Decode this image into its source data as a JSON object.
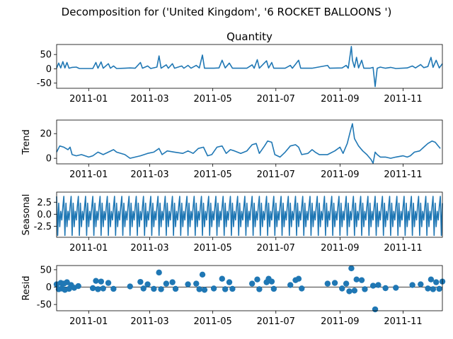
{
  "chart_data": {
    "type": "line",
    "title": "Decomposition for ('United Kingdom', '6 ROCKET BALLOONS ')",
    "x_range": [
      "2010-12-01",
      "2011-12-09"
    ],
    "x_ticks": [
      "2011-01",
      "2011-03",
      "2011-05",
      "2011-07",
      "2011-09",
      "2011-11"
    ],
    "color": "#1f77b4",
    "panels": [
      {
        "name": "quantity",
        "subplot_title": "Quantity",
        "ylabel": "",
        "kind": "line",
        "ylim": [
          -68,
          85
        ],
        "yticks": [
          50,
          0,
          -50
        ],
        "points": [
          [
            "2010-12-01",
            2
          ],
          [
            "2010-12-03",
            20
          ],
          [
            "2010-12-05",
            3
          ],
          [
            "2010-12-07",
            25
          ],
          [
            "2010-12-09",
            3
          ],
          [
            "2010-12-11",
            22
          ],
          [
            "2010-12-13",
            2
          ],
          [
            "2010-12-16",
            5
          ],
          [
            "2010-12-20",
            6
          ],
          [
            "2010-12-23",
            1
          ],
          [
            "2011-01-05",
            1
          ],
          [
            "2011-01-08",
            22
          ],
          [
            "2011-01-10",
            2
          ],
          [
            "2011-01-13",
            24
          ],
          [
            "2011-01-15",
            2
          ],
          [
            "2011-01-20",
            18
          ],
          [
            "2011-01-22",
            2
          ],
          [
            "2011-01-25",
            10
          ],
          [
            "2011-01-28",
            1
          ],
          [
            "2011-02-05",
            2
          ],
          [
            "2011-02-10",
            3
          ],
          [
            "2011-02-15",
            2
          ],
          [
            "2011-02-20",
            22
          ],
          [
            "2011-02-22",
            2
          ],
          [
            "2011-02-27",
            10
          ],
          [
            "2011-03-02",
            1
          ],
          [
            "2011-03-08",
            6
          ],
          [
            "2011-03-10",
            45
          ],
          [
            "2011-03-12",
            2
          ],
          [
            "2011-03-17",
            14
          ],
          [
            "2011-03-19",
            2
          ],
          [
            "2011-03-23",
            18
          ],
          [
            "2011-03-25",
            2
          ],
          [
            "2011-04-01",
            10
          ],
          [
            "2011-04-03",
            2
          ],
          [
            "2011-04-07",
            12
          ],
          [
            "2011-04-10",
            2
          ],
          [
            "2011-04-15",
            12
          ],
          [
            "2011-04-18",
            3
          ],
          [
            "2011-04-21",
            48
          ],
          [
            "2011-04-23",
            2
          ],
          [
            "2011-05-02",
            2
          ],
          [
            "2011-05-07",
            3
          ],
          [
            "2011-05-10",
            30
          ],
          [
            "2011-05-13",
            3
          ],
          [
            "2011-05-17",
            20
          ],
          [
            "2011-05-20",
            2
          ],
          [
            "2011-06-03",
            2
          ],
          [
            "2011-06-08",
            14
          ],
          [
            "2011-06-10",
            2
          ],
          [
            "2011-06-13",
            32
          ],
          [
            "2011-06-15",
            2
          ],
          [
            "2011-06-22",
            28
          ],
          [
            "2011-06-24",
            3
          ],
          [
            "2011-06-27",
            22
          ],
          [
            "2011-06-29",
            2
          ],
          [
            "2011-07-10",
            2
          ],
          [
            "2011-07-15",
            12
          ],
          [
            "2011-07-17",
            2
          ],
          [
            "2011-07-23",
            30
          ],
          [
            "2011-07-25",
            2
          ],
          [
            "2011-08-05",
            2
          ],
          [
            "2011-08-20",
            12
          ],
          [
            "2011-08-22",
            2
          ],
          [
            "2011-09-03",
            3
          ],
          [
            "2011-09-07",
            12
          ],
          [
            "2011-09-09",
            2
          ],
          [
            "2011-09-12",
            78
          ],
          [
            "2011-09-13",
            30
          ],
          [
            "2011-09-15",
            5
          ],
          [
            "2011-09-17",
            40
          ],
          [
            "2011-09-19",
            3
          ],
          [
            "2011-09-22",
            30
          ],
          [
            "2011-09-24",
            2
          ],
          [
            "2011-09-30",
            2
          ],
          [
            "2011-10-03",
            5
          ],
          [
            "2011-10-05",
            -62
          ],
          [
            "2011-10-07",
            2
          ],
          [
            "2011-10-10",
            6
          ],
          [
            "2011-10-15",
            2
          ],
          [
            "2011-10-20",
            5
          ],
          [
            "2011-10-25",
            1
          ],
          [
            "2011-11-05",
            3
          ],
          [
            "2011-11-10",
            10
          ],
          [
            "2011-11-13",
            3
          ],
          [
            "2011-11-18",
            15
          ],
          [
            "2011-11-21",
            4
          ],
          [
            "2011-11-25",
            8
          ],
          [
            "2011-11-28",
            40
          ],
          [
            "2011-11-30",
            5
          ],
          [
            "2011-12-03",
            30
          ],
          [
            "2011-12-06",
            3
          ],
          [
            "2011-12-09",
            18
          ]
        ]
      },
      {
        "name": "trend",
        "subplot_title": "",
        "ylabel": "Trend",
        "kind": "line",
        "ylim": [
          -4.5,
          31
        ],
        "yticks": [
          20,
          0
        ],
        "points": [
          [
            "2010-12-01",
            5
          ],
          [
            "2010-12-04",
            10
          ],
          [
            "2010-12-08",
            9
          ],
          [
            "2010-12-12",
            7
          ],
          [
            "2010-12-14",
            9
          ],
          [
            "2010-12-16",
            3
          ],
          [
            "2010-12-20",
            2
          ],
          [
            "2010-12-25",
            3
          ],
          [
            "2011-01-01",
            1
          ],
          [
            "2011-01-05",
            2
          ],
          [
            "2011-01-10",
            5
          ],
          [
            "2011-01-15",
            3
          ],
          [
            "2011-01-20",
            5
          ],
          [
            "2011-01-25",
            7
          ],
          [
            "2011-01-28",
            5
          ],
          [
            "2011-02-05",
            3
          ],
          [
            "2011-02-10",
            0
          ],
          [
            "2011-02-15",
            1
          ],
          [
            "2011-02-20",
            2
          ],
          [
            "2011-02-27",
            4
          ],
          [
            "2011-03-05",
            5
          ],
          [
            "2011-03-10",
            8
          ],
          [
            "2011-03-13",
            3
          ],
          [
            "2011-03-18",
            6
          ],
          [
            "2011-03-25",
            5
          ],
          [
            "2011-04-02",
            4
          ],
          [
            "2011-04-07",
            6
          ],
          [
            "2011-04-12",
            4
          ],
          [
            "2011-04-17",
            8
          ],
          [
            "2011-04-22",
            9
          ],
          [
            "2011-04-26",
            2
          ],
          [
            "2011-04-30",
            3
          ],
          [
            "2011-05-05",
            9
          ],
          [
            "2011-05-10",
            10
          ],
          [
            "2011-05-14",
            4
          ],
          [
            "2011-05-18",
            7
          ],
          [
            "2011-05-22",
            6
          ],
          [
            "2011-05-28",
            4
          ],
          [
            "2011-06-03",
            6
          ],
          [
            "2011-06-08",
            11
          ],
          [
            "2011-06-12",
            12
          ],
          [
            "2011-06-15",
            4
          ],
          [
            "2011-06-20",
            10
          ],
          [
            "2011-06-23",
            14
          ],
          [
            "2011-06-27",
            13
          ],
          [
            "2011-06-30",
            3
          ],
          [
            "2011-07-05",
            1
          ],
          [
            "2011-07-10",
            5
          ],
          [
            "2011-07-15",
            10
          ],
          [
            "2011-07-20",
            11
          ],
          [
            "2011-07-23",
            9
          ],
          [
            "2011-07-26",
            3
          ],
          [
            "2011-08-01",
            4
          ],
          [
            "2011-08-05",
            7
          ],
          [
            "2011-08-08",
            5
          ],
          [
            "2011-08-12",
            3
          ],
          [
            "2011-08-20",
            3
          ],
          [
            "2011-08-27",
            6
          ],
          [
            "2011-09-01",
            9
          ],
          [
            "2011-09-04",
            4
          ],
          [
            "2011-09-08",
            12
          ],
          [
            "2011-09-11",
            22
          ],
          [
            "2011-09-13",
            28
          ],
          [
            "2011-09-15",
            16
          ],
          [
            "2011-09-19",
            10
          ],
          [
            "2011-09-23",
            6
          ],
          [
            "2011-09-27",
            3
          ],
          [
            "2011-10-01",
            -1
          ],
          [
            "2011-10-03",
            -4
          ],
          [
            "2011-10-05",
            5
          ],
          [
            "2011-10-07",
            3
          ],
          [
            "2011-10-10",
            1
          ],
          [
            "2011-10-15",
            1
          ],
          [
            "2011-10-20",
            0
          ],
          [
            "2011-10-25",
            1
          ],
          [
            "2011-11-01",
            2
          ],
          [
            "2011-11-05",
            1
          ],
          [
            "2011-11-08",
            2
          ],
          [
            "2011-11-12",
            5
          ],
          [
            "2011-11-17",
            6
          ],
          [
            "2011-11-21",
            9
          ],
          [
            "2011-11-25",
            12
          ],
          [
            "2011-11-29",
            14
          ],
          [
            "2011-12-02",
            13
          ],
          [
            "2011-12-05",
            10
          ],
          [
            "2011-12-07",
            8
          ]
        ]
      },
      {
        "name": "seasonal",
        "subplot_title": "",
        "ylabel": "Seasonal",
        "kind": "seasonal",
        "ylim": [
          -4.8,
          4.6
        ],
        "yticks": [
          2.5,
          0.0,
          -2.5
        ],
        "period_days": 7,
        "pattern": [
          3.7,
          -4.4,
          2.3,
          -2.6,
          0.6,
          -1.2,
          1.6
        ]
      },
      {
        "name": "resid",
        "subplot_title": "",
        "ylabel": "Resid",
        "kind": "scatter",
        "ylim": [
          -68,
          62
        ],
        "yticks": [
          50,
          0,
          -50
        ],
        "points": [
          [
            "2010-12-01",
            8
          ],
          [
            "2010-12-03",
            -6
          ],
          [
            "2010-12-05",
            12
          ],
          [
            "2010-12-06",
            -4
          ],
          [
            "2010-12-08",
            10
          ],
          [
            "2010-12-09",
            -8
          ],
          [
            "2010-12-11",
            14
          ],
          [
            "2010-12-13",
            -5
          ],
          [
            "2010-12-15",
            6
          ],
          [
            "2010-12-18",
            -2
          ],
          [
            "2010-12-22",
            3
          ],
          [
            "2011-01-05",
            -3
          ],
          [
            "2011-01-08",
            18
          ],
          [
            "2011-01-10",
            -6
          ],
          [
            "2011-01-13",
            16
          ],
          [
            "2011-01-15",
            -4
          ],
          [
            "2011-01-20",
            12
          ],
          [
            "2011-01-25",
            -5
          ],
          [
            "2011-02-10",
            2
          ],
          [
            "2011-02-20",
            15
          ],
          [
            "2011-02-23",
            -4
          ],
          [
            "2011-02-27",
            8
          ],
          [
            "2011-03-05",
            -5
          ],
          [
            "2011-03-10",
            42
          ],
          [
            "2011-03-12",
            -6
          ],
          [
            "2011-03-17",
            10
          ],
          [
            "2011-03-23",
            14
          ],
          [
            "2011-03-26",
            -5
          ],
          [
            "2011-04-07",
            8
          ],
          [
            "2011-04-15",
            10
          ],
          [
            "2011-04-18",
            -6
          ],
          [
            "2011-04-21",
            36
          ],
          [
            "2011-04-23",
            -8
          ],
          [
            "2011-05-02",
            -4
          ],
          [
            "2011-05-10",
            24
          ],
          [
            "2011-05-13",
            -6
          ],
          [
            "2011-05-17",
            14
          ],
          [
            "2011-05-20",
            -5
          ],
          [
            "2011-06-08",
            10
          ],
          [
            "2011-06-13",
            22
          ],
          [
            "2011-06-15",
            -6
          ],
          [
            "2011-06-22",
            14
          ],
          [
            "2011-06-24",
            24
          ],
          [
            "2011-06-27",
            16
          ],
          [
            "2011-06-29",
            -5
          ],
          [
            "2011-07-15",
            6
          ],
          [
            "2011-07-20",
            20
          ],
          [
            "2011-07-23",
            24
          ],
          [
            "2011-07-26",
            -4
          ],
          [
            "2011-08-20",
            10
          ],
          [
            "2011-08-27",
            12
          ],
          [
            "2011-09-03",
            -4
          ],
          [
            "2011-09-07",
            10
          ],
          [
            "2011-09-10",
            -12
          ],
          [
            "2011-09-12",
            54
          ],
          [
            "2011-09-15",
            -10
          ],
          [
            "2011-09-17",
            22
          ],
          [
            "2011-09-22",
            20
          ],
          [
            "2011-09-25",
            -6
          ],
          [
            "2011-10-03",
            4
          ],
          [
            "2011-10-05",
            -64
          ],
          [
            "2011-10-08",
            6
          ],
          [
            "2011-10-15",
            -3
          ],
          [
            "2011-10-25",
            -2
          ],
          [
            "2011-11-10",
            6
          ],
          [
            "2011-11-18",
            8
          ],
          [
            "2011-11-25",
            -4
          ],
          [
            "2011-11-28",
            22
          ],
          [
            "2011-11-30",
            -6
          ],
          [
            "2011-12-03",
            14
          ],
          [
            "2011-12-06",
            -5
          ],
          [
            "2011-12-09",
            16
          ]
        ]
      }
    ]
  }
}
